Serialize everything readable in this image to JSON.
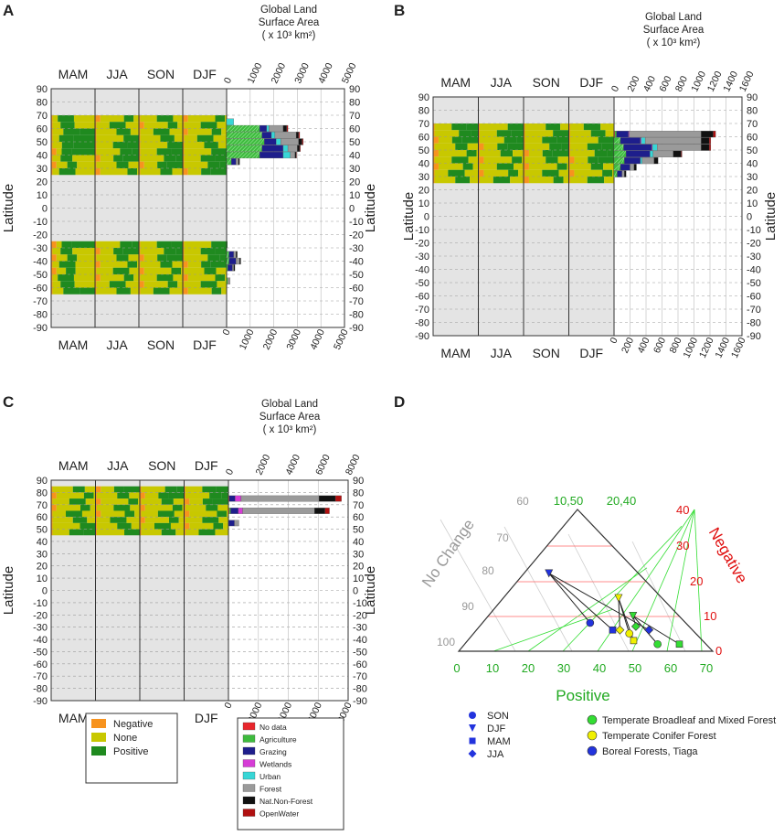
{
  "panels": {
    "A": {
      "label": "A",
      "seasons": [
        "MAM",
        "JJA",
        "SON",
        "DJF"
      ],
      "area_title": [
        "Global Land",
        "Surface Area",
        "( x 10³ km²)"
      ],
      "y_label": "Latitude",
      "y_ticks": [
        90,
        80,
        70,
        60,
        50,
        40,
        30,
        20,
        10,
        0,
        -10,
        -20,
        -30,
        -40,
        -50,
        -60,
        -70,
        -80,
        -90
      ],
      "x_ticks": [
        "0",
        "1000",
        "2000",
        "3000",
        "4000",
        "5000"
      ],
      "x_max": 5000,
      "season_bands": [
        [
          70,
          25
        ],
        [
          -25,
          -65
        ]
      ],
      "bars": [
        {
          "lat": 65,
          "segments": [
            0,
            0,
            0,
            0,
            300,
            0,
            0,
            0
          ]
        },
        {
          "lat": 60,
          "segments": [
            0,
            1400,
            300,
            0,
            100,
            600,
            150,
            50
          ]
        },
        {
          "lat": 55,
          "segments": [
            0,
            1500,
            400,
            0,
            150,
            900,
            100,
            50
          ]
        },
        {
          "lat": 50,
          "segments": [
            0,
            1600,
            500,
            0,
            200,
            750,
            150,
            50
          ]
        },
        {
          "lat": 45,
          "segments": [
            0,
            1500,
            900,
            0,
            200,
            400,
            100,
            30
          ]
        },
        {
          "lat": 40,
          "segments": [
            0,
            1400,
            1000,
            0,
            300,
            200,
            50,
            20
          ]
        },
        {
          "lat": 35,
          "segments": [
            0,
            200,
            200,
            0,
            0,
            100,
            50,
            0
          ]
        },
        {
          "lat": -35,
          "segments": [
            0,
            100,
            200,
            0,
            0,
            100,
            50,
            0
          ]
        },
        {
          "lat": -40,
          "segments": [
            0,
            100,
            300,
            0,
            0,
            150,
            50,
            0
          ]
        },
        {
          "lat": -45,
          "segments": [
            0,
            50,
            200,
            0,
            0,
            50,
            50,
            0
          ]
        },
        {
          "lat": -55,
          "segments": [
            0,
            50,
            0,
            0,
            0,
            100,
            0,
            0
          ]
        }
      ]
    },
    "B": {
      "label": "B",
      "seasons": [
        "MAM",
        "JJA",
        "SON",
        "DJF"
      ],
      "area_title": [
        "Global Land",
        "Surface Area",
        "( x 10³ km²)"
      ],
      "y_label": "Latitude",
      "y_ticks": [
        90,
        80,
        70,
        60,
        50,
        40,
        30,
        20,
        10,
        0,
        -10,
        -20,
        -30,
        -40,
        -50,
        -60,
        -70,
        -80,
        -90
      ],
      "x_ticks": [
        "0",
        "200",
        "400",
        "600",
        "800",
        "1000",
        "1200",
        "1400",
        "1600"
      ],
      "x_max": 1600,
      "season_bands": [
        [
          70,
          25
        ]
      ],
      "bars": [
        {
          "lat": 62,
          "segments": [
            10,
            20,
            150,
            10,
            0,
            900,
            150,
            30
          ]
        },
        {
          "lat": 57,
          "segments": [
            0,
            80,
            250,
            10,
            50,
            700,
            100,
            20
          ]
        },
        {
          "lat": 52,
          "segments": [
            0,
            120,
            350,
            10,
            60,
            550,
            100,
            20
          ]
        },
        {
          "lat": 47,
          "segments": [
            0,
            150,
            300,
            0,
            40,
            250,
            100,
            10
          ]
        },
        {
          "lat": 42,
          "segments": [
            0,
            130,
            200,
            0,
            20,
            150,
            50,
            0
          ]
        },
        {
          "lat": 37,
          "segments": [
            0,
            80,
            120,
            0,
            0,
            50,
            30,
            0
          ]
        },
        {
          "lat": 32,
          "segments": [
            0,
            40,
            60,
            0,
            0,
            30,
            20,
            0
          ]
        }
      ]
    },
    "C": {
      "label": "C",
      "seasons": [
        "MAM",
        "JJA",
        "SON",
        "DJF"
      ],
      "area_title": [
        "Global Land",
        "Surface Area",
        "( x 10³ km²)"
      ],
      "y_label": "Latitude",
      "y_ticks": [
        90,
        80,
        70,
        60,
        50,
        40,
        30,
        20,
        10,
        0,
        -10,
        -20,
        -30,
        -40,
        -50,
        -60,
        -70,
        -80,
        -90
      ],
      "x_ticks": [
        "0",
        "2000",
        "4000",
        "6000",
        "8000"
      ],
      "x_max": 8000,
      "season_bands": [
        [
          85,
          45
        ]
      ],
      "bars": [
        {
          "lat": 75,
          "segments": [
            50,
            0,
            400,
            400,
            0,
            5200,
            1100,
            400
          ]
        },
        {
          "lat": 65,
          "segments": [
            50,
            100,
            500,
            300,
            0,
            4800,
            700,
            300
          ]
        },
        {
          "lat": 55,
          "segments": [
            0,
            0,
            400,
            0,
            0,
            300,
            0,
            0
          ]
        }
      ]
    },
    "D": {
      "label": "D",
      "axis_no_change": "No Change",
      "axis_negative": "Negative",
      "axis_positive": "Positive",
      "no_change_ticks": [
        "60",
        "70",
        "80",
        "90",
        "100"
      ],
      "negative_ticks": [
        "40",
        "30",
        "20",
        "10",
        "0"
      ],
      "positive_ticks": [
        "0",
        "10",
        "20",
        "30",
        "40",
        "50",
        "60",
        "70"
      ],
      "top_ticks": [
        "10,50",
        "20,40"
      ],
      "points": [
        {
          "season": "DJF",
          "type": "boreal",
          "pos": 16,
          "neg": 22
        },
        {
          "season": "SON",
          "type": "boreal",
          "pos": 33,
          "neg": 8
        },
        {
          "season": "MAM",
          "type": "boreal",
          "pos": 40,
          "neg": 6
        },
        {
          "season": "JJA",
          "type": "boreal",
          "pos": 50,
          "neg": 6
        },
        {
          "season": "DJF",
          "type": "temperate_conifer",
          "pos": 38,
          "neg": 15
        },
        {
          "season": "SON",
          "type": "temperate_conifer",
          "pos": 45,
          "neg": 5
        },
        {
          "season": "MAM",
          "type": "temperate_conifer",
          "pos": 47,
          "neg": 3
        },
        {
          "season": "JJA",
          "type": "temperate_conifer",
          "pos": 42,
          "neg": 6
        },
        {
          "season": "DJF",
          "type": "temperate_broadleaf",
          "pos": 44,
          "neg": 10
        },
        {
          "season": "SON",
          "type": "temperate_broadleaf",
          "pos": 54,
          "neg": 2
        },
        {
          "season": "MAM",
          "type": "temperate_broadleaf",
          "pos": 60,
          "neg": 2
        },
        {
          "season": "JJA",
          "type": "temperate_broadleaf",
          "pos": 46,
          "neg": 7
        }
      ]
    }
  },
  "legend_change": [
    {
      "label": "Negative",
      "color": "#f7931e"
    },
    {
      "label": "None",
      "color": "#c8c800"
    },
    {
      "label": "Positive",
      "color": "#1f8a1f"
    }
  ],
  "legend_landcover": [
    {
      "label": "No data",
      "color": "#e8262c"
    },
    {
      "label": "Agriculture",
      "color": "#3dbb3d"
    },
    {
      "label": "Grazing",
      "color": "#1e1e8c"
    },
    {
      "label": "Wetlands",
      "color": "#d63cd6"
    },
    {
      "label": "Urban",
      "color": "#38d6d6"
    },
    {
      "label": "Forest",
      "color": "#9a9a9a"
    },
    {
      "label": "Nat.Non-Forest",
      "color": "#111111"
    },
    {
      "label": "OpenWater",
      "color": "#b01010"
    }
  ],
  "legend_season_markers": [
    {
      "label": "SON",
      "shape": "circle"
    },
    {
      "label": "DJF",
      "shape": "triangle-down"
    },
    {
      "label": "MAM",
      "shape": "square"
    },
    {
      "label": "JJA",
      "shape": "diamond"
    }
  ],
  "legend_forest_types": [
    {
      "key": "temperate_broadleaf",
      "label": "Temperate Broadleaf and Mixed Forest",
      "color": "#33dd33"
    },
    {
      "key": "temperate_conifer",
      "label": "Temperate Conifer Forest",
      "color": "#f0f000"
    },
    {
      "key": "boreal",
      "label": "Boreal Forests, Tiaga",
      "color": "#2233dd"
    }
  ],
  "chart_data": [
    {
      "type": "bar",
      "title": "A",
      "orientation": "horizontal",
      "stacked": true,
      "xlabel": "Global Land Surface Area ( x 10³ km²)",
      "ylabel": "Latitude",
      "xlim": [
        0,
        5000
      ],
      "ylim": [
        -90,
        90
      ],
      "categories": [
        65,
        60,
        55,
        50,
        45,
        40,
        35,
        -35,
        -40,
        -45,
        -55
      ],
      "series": [
        {
          "name": "No data",
          "values": [
            0,
            0,
            0,
            0,
            0,
            0,
            0,
            0,
            0,
            0,
            0
          ]
        },
        {
          "name": "Agriculture",
          "values": [
            0,
            1400,
            1500,
            1600,
            1500,
            1400,
            200,
            100,
            100,
            50,
            50
          ]
        },
        {
          "name": "Grazing",
          "values": [
            0,
            300,
            400,
            500,
            900,
            1000,
            200,
            200,
            300,
            200,
            0
          ]
        },
        {
          "name": "Wetlands",
          "values": [
            0,
            0,
            0,
            0,
            0,
            0,
            0,
            0,
            0,
            0,
            0
          ]
        },
        {
          "name": "Urban",
          "values": [
            300,
            100,
            150,
            200,
            200,
            300,
            0,
            0,
            0,
            0,
            0
          ]
        },
        {
          "name": "Forest",
          "values": [
            0,
            600,
            900,
            750,
            400,
            200,
            100,
            100,
            150,
            50,
            100
          ]
        },
        {
          "name": "Nat.Non-Forest",
          "values": [
            0,
            150,
            100,
            150,
            100,
            50,
            50,
            50,
            50,
            50,
            0
          ]
        },
        {
          "name": "OpenWater",
          "values": [
            0,
            50,
            50,
            50,
            30,
            20,
            0,
            0,
            0,
            0,
            0
          ]
        }
      ]
    },
    {
      "type": "bar",
      "title": "B",
      "orientation": "horizontal",
      "stacked": true,
      "xlabel": "Global Land Surface Area ( x 10³ km²)",
      "ylabel": "Latitude",
      "xlim": [
        0,
        1600
      ],
      "ylim": [
        -90,
        90
      ],
      "categories": [
        62,
        57,
        52,
        47,
        42,
        37,
        32
      ],
      "series": [
        {
          "name": "No data",
          "values": [
            10,
            0,
            0,
            0,
            0,
            0,
            0
          ]
        },
        {
          "name": "Agriculture",
          "values": [
            20,
            80,
            120,
            150,
            130,
            80,
            40
          ]
        },
        {
          "name": "Grazing",
          "values": [
            150,
            250,
            350,
            300,
            200,
            120,
            60
          ]
        },
        {
          "name": "Wetlands",
          "values": [
            10,
            10,
            10,
            0,
            0,
            0,
            0
          ]
        },
        {
          "name": "Urban",
          "values": [
            0,
            50,
            60,
            40,
            20,
            0,
            0
          ]
        },
        {
          "name": "Forest",
          "values": [
            900,
            700,
            550,
            250,
            150,
            50,
            30
          ]
        },
        {
          "name": "Nat.Non-Forest",
          "values": [
            150,
            100,
            100,
            100,
            50,
            30,
            20
          ]
        },
        {
          "name": "OpenWater",
          "values": [
            30,
            20,
            20,
            10,
            0,
            0,
            0
          ]
        }
      ]
    },
    {
      "type": "bar",
      "title": "C",
      "orientation": "horizontal",
      "stacked": true,
      "xlabel": "Global Land Surface Area ( x 10³ km²)",
      "ylabel": "Latitude",
      "xlim": [
        0,
        8000
      ],
      "ylim": [
        -90,
        90
      ],
      "categories": [
        75,
        65,
        55
      ],
      "series": [
        {
          "name": "No data",
          "values": [
            50,
            50,
            0
          ]
        },
        {
          "name": "Agriculture",
          "values": [
            0,
            100,
            0
          ]
        },
        {
          "name": "Grazing",
          "values": [
            400,
            500,
            400
          ]
        },
        {
          "name": "Wetlands",
          "values": [
            400,
            300,
            0
          ]
        },
        {
          "name": "Urban",
          "values": [
            0,
            0,
            0
          ]
        },
        {
          "name": "Forest",
          "values": [
            5200,
            4800,
            300
          ]
        },
        {
          "name": "Nat.Non-Forest",
          "values": [
            1100,
            700,
            0
          ]
        },
        {
          "name": "OpenWater",
          "values": [
            400,
            300,
            0
          ]
        }
      ]
    },
    {
      "type": "scatter",
      "title": "D",
      "subtype": "ternary",
      "axes": [
        "Positive",
        "Negative",
        "No Change"
      ],
      "series": [
        {
          "name": "Boreal Forests, Tiaga",
          "x_positive": [
            16,
            33,
            40,
            50
          ],
          "y_negative": [
            22,
            8,
            6,
            6
          ],
          "seasons": [
            "DJF",
            "SON",
            "MAM",
            "JJA"
          ]
        },
        {
          "name": "Temperate Conifer Forest",
          "x_positive": [
            38,
            45,
            47,
            42
          ],
          "y_negative": [
            15,
            5,
            3,
            6
          ],
          "seasons": [
            "DJF",
            "SON",
            "MAM",
            "JJA"
          ]
        },
        {
          "name": "Temperate Broadleaf and Mixed Forest",
          "x_positive": [
            44,
            54,
            60,
            46
          ],
          "y_negative": [
            10,
            2,
            2,
            7
          ],
          "seasons": [
            "DJF",
            "SON",
            "MAM",
            "JJA"
          ]
        }
      ]
    }
  ]
}
